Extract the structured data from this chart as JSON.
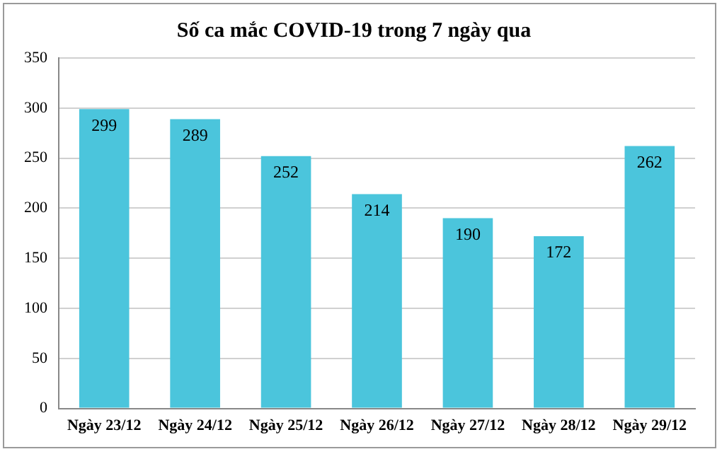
{
  "chart_data": {
    "type": "bar",
    "title": "Số ca mắc COVID-19 trong 7 ngày qua",
    "categories": [
      "Ngày 23/12",
      "Ngày 24/12",
      "Ngày 25/12",
      "Ngày 26/12",
      "Ngày 27/12",
      "Ngày 28/12",
      "Ngày 29/12"
    ],
    "values": [
      299,
      289,
      252,
      214,
      190,
      172,
      262
    ],
    "color": "#4bc5dc",
    "ylim": [
      0,
      350
    ],
    "yticks": [
      0,
      50,
      100,
      150,
      200,
      250,
      300,
      350
    ],
    "grid": "y",
    "data_labels": true
  }
}
